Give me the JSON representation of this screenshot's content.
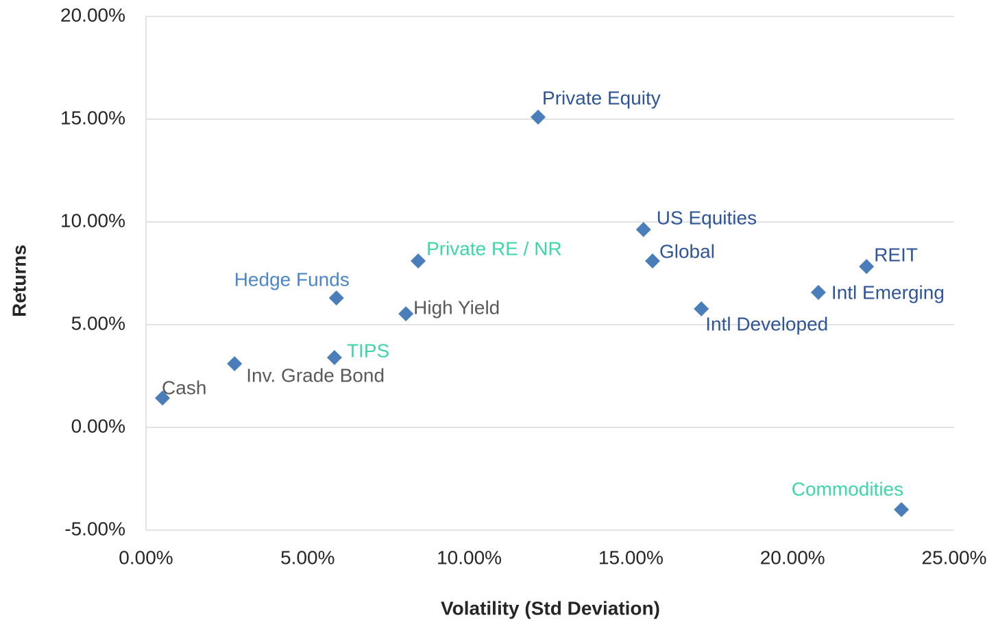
{
  "chart_data": {
    "type": "scatter",
    "x_label": "Volatility (Std Deviation)",
    "y_label": "Returns",
    "color": "#4a7ebb",
    "point_labels": [
      "Cash",
      "Inv. Grade Bond",
      "TIPS",
      "Hedge Funds",
      "High Yield",
      "Private RE / NR",
      "Private Equity",
      "US Equities",
      "Global",
      "Intl Developed",
      "Intl Emerging",
      "REIT",
      "Commodities"
    ],
    "x": [
      0.51,
      2.74,
      5.83,
      5.89,
      8.04,
      8.42,
      12.13,
      15.39,
      15.67,
      17.18,
      20.8,
      22.29,
      23.37
    ],
    "values": [
      1.43,
      3.1,
      3.4,
      6.3,
      5.53,
      8.1,
      15.1,
      9.63,
      8.1,
      5.77,
      6.57,
      7.83,
      -4.0
    ],
    "label_colors": [
      "#595959",
      "#595959",
      "#3dd6a8",
      "#4a86c8",
      "#595959",
      "#3dd6a8",
      "#2f5597",
      "#2f5597",
      "#2f5597",
      "#2f5597",
      "#2f5597",
      "#2f5597",
      "#3dd6a8"
    ],
    "xlim": [
      0,
      25
    ],
    "ylim": [
      -5,
      20
    ],
    "xticks": [
      {
        "value": 0,
        "label": "0.00%"
      },
      {
        "value": 5,
        "label": "5.00%"
      },
      {
        "value": 10,
        "label": "10.00%"
      },
      {
        "value": 15,
        "label": "15.00%"
      },
      {
        "value": 20,
        "label": "20.00%"
      },
      {
        "value": 25,
        "label": "25.00%"
      }
    ],
    "yticks": [
      {
        "value": -5,
        "label": "-5.00%"
      },
      {
        "value": 0,
        "label": "0.00%"
      },
      {
        "value": 5,
        "label": "5.00%"
      },
      {
        "value": 10,
        "label": "10.00%"
      },
      {
        "value": 15,
        "label": "15.00%"
      },
      {
        "value": 20,
        "label": "20.00%"
      }
    ],
    "grid": true
  }
}
